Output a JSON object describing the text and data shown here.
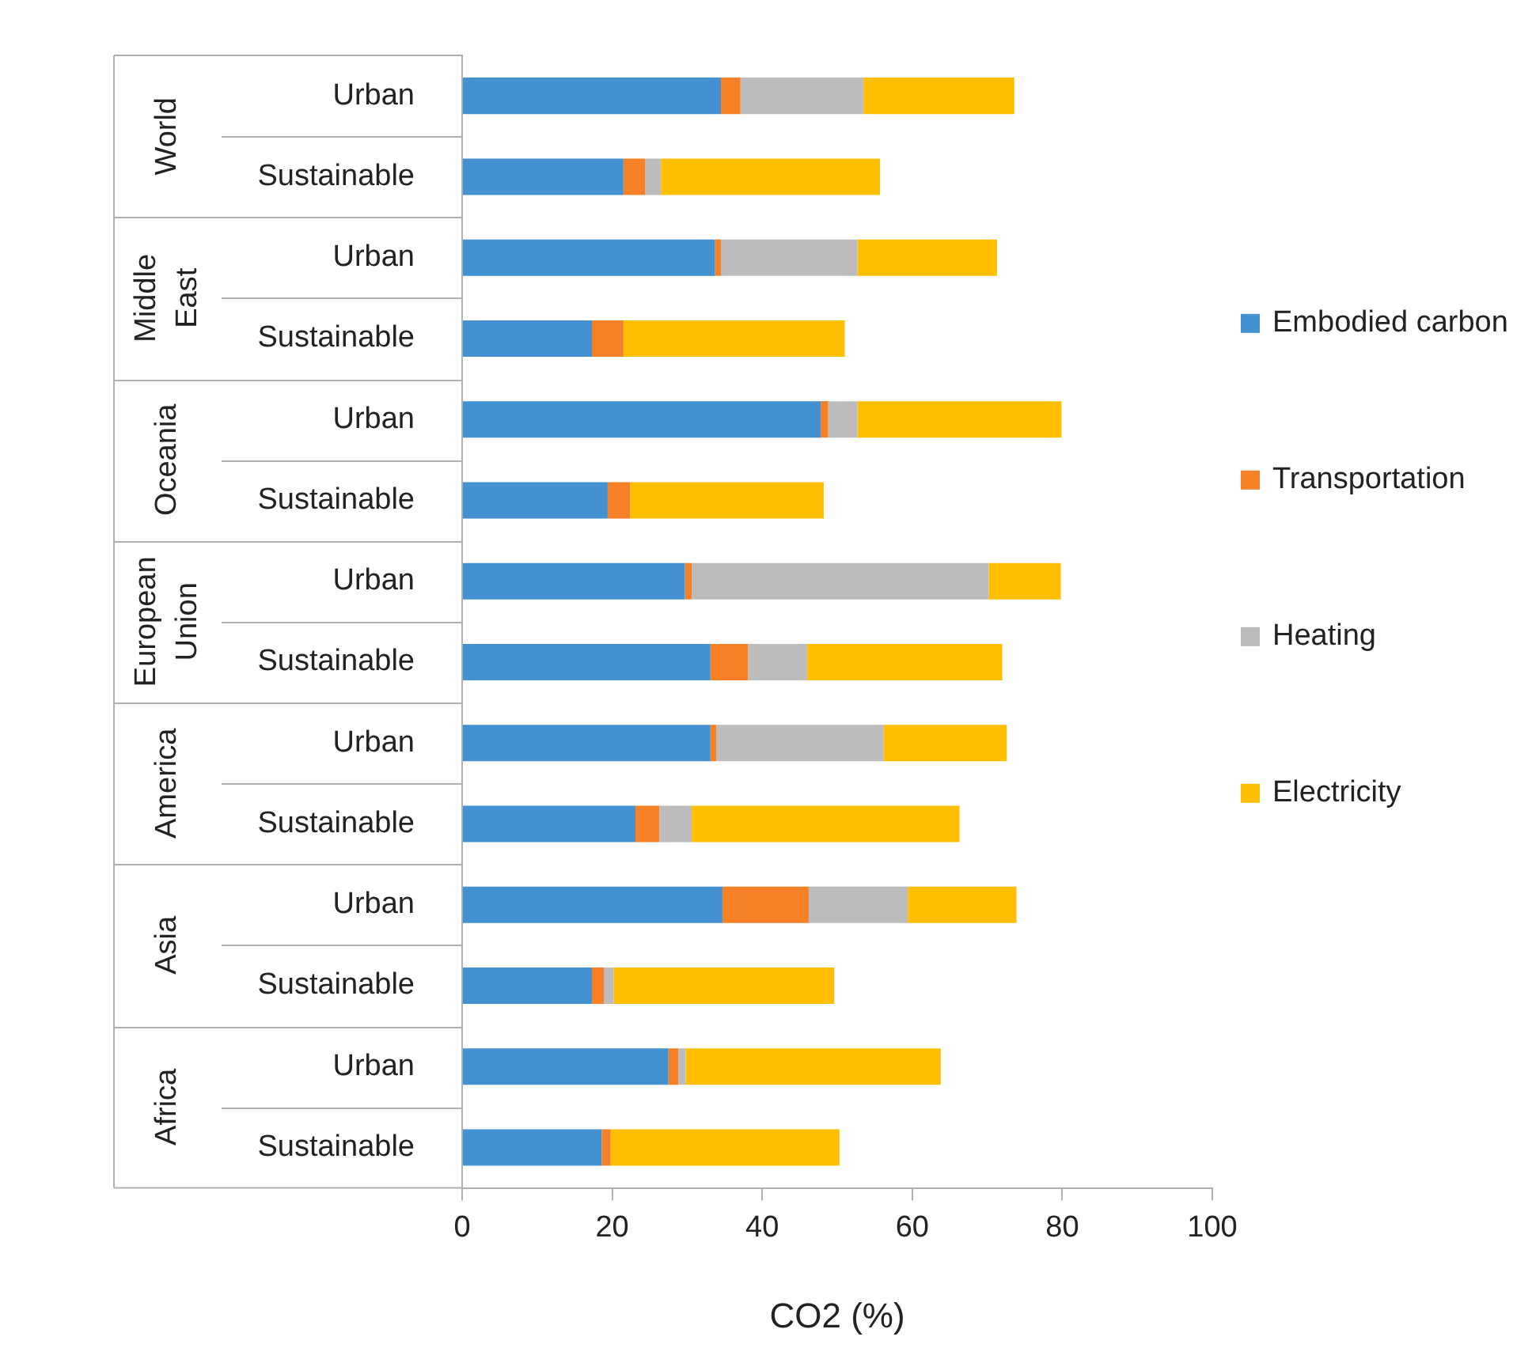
{
  "chart_data": {
    "type": "bar",
    "orientation": "horizontal",
    "stacked": true,
    "xlabel": "CO2 (%)",
    "categories": [
      "Urban",
      "Sustainable",
      "Urban",
      "Sustainable",
      "Urban",
      "Sustainable",
      "Urban",
      "Sustainable",
      "Urban",
      "Sustainable",
      "Urban",
      "Sustainable",
      "Urban",
      "Sustainable"
    ],
    "annotations": [
      "World",
      "Middle East",
      "Oceania",
      "European Union",
      "America",
      "Asia",
      "Africa"
    ],
    "series": [
      {
        "name": "Embodied carbon",
        "color": "#4391d0",
        "values": [
          34.5,
          21.5,
          33.7,
          17.3,
          47.8,
          19.4,
          29.7,
          33.1,
          33.1,
          23.1,
          34.7,
          17.3,
          27.5,
          18.6
        ]
      },
      {
        "name": "Transportation",
        "color": "#f58025",
        "values": [
          2.6,
          2.9,
          0.8,
          4.2,
          1.0,
          3.0,
          0.9,
          5.0,
          0.8,
          3.2,
          11.5,
          1.6,
          1.3,
          1.2
        ]
      },
      {
        "name": "Heating",
        "color": "#bcbcbc",
        "values": [
          16.4,
          2.1,
          18.2,
          0,
          3.9,
          0,
          39.6,
          7.9,
          22.3,
          4.3,
          13.2,
          1.3,
          1.0,
          0
        ]
      },
      {
        "name": "Electricity",
        "color": "#ffbf00",
        "values": [
          20.1,
          29.2,
          18.6,
          29.5,
          27.2,
          25.8,
          9.6,
          26.0,
          16.4,
          35.7,
          14.5,
          29.4,
          34.0,
          30.5
        ]
      }
    ],
    "xlim": [
      0,
      100
    ],
    "xticks": [
      0,
      20,
      40,
      60,
      80,
      100
    ],
    "legend": "right",
    "grid": false
  }
}
